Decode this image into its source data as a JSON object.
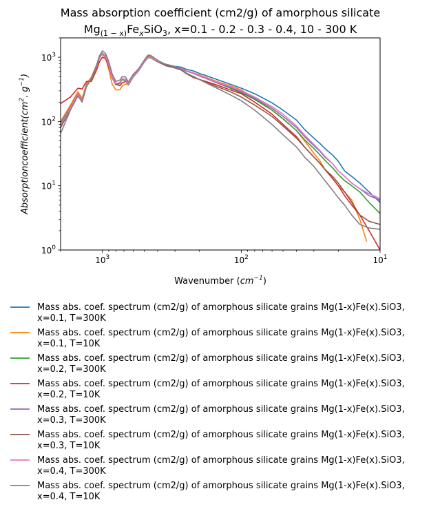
{
  "chart_data": {
    "type": "line",
    "title_line1": "Mass absorption coefficient (cm2/g) of amorphous silicate",
    "title_line2": {
      "prefix": "Mg",
      "sub1": "(1 − x)",
      "mid": "Fe",
      "sub2": "x",
      "mid2": "SiO",
      "sub3": "3",
      "suffix": ", x=0.1 - 0.2 - 0.3 - 0.4, 10 - 300 K"
    },
    "xlabel": {
      "text": "Wavenumber (",
      "unit_base": "cm",
      "unit_exp": "−1",
      "close": ")"
    },
    "ylabel": {
      "text": "Absorptioncoefficient(",
      "unit1": "cm",
      "exp1": "2",
      "dot": ". ",
      "unit2": "g",
      "exp2": "−1",
      "close": ")"
    },
    "x_scale": "log",
    "y_scale": "log",
    "x_inverted": true,
    "xlim": [
      2000,
      10
    ],
    "ylim": [
      1,
      2000
    ],
    "x_ticks": [
      {
        "value": 1000,
        "base": "10",
        "exp": "3"
      },
      {
        "value": 100,
        "base": "10",
        "exp": "2"
      },
      {
        "value": 10,
        "base": "10",
        "exp": "1"
      }
    ],
    "y_ticks": [
      {
        "value": 1,
        "base": "10",
        "exp": "0"
      },
      {
        "value": 10,
        "base": "10",
        "exp": "1"
      },
      {
        "value": 100,
        "base": "10",
        "exp": "2"
      },
      {
        "value": 1000,
        "base": "10",
        "exp": "3"
      }
    ],
    "grid": false,
    "legend_position": "below",
    "series": [
      {
        "name_line1": "Mass abs. coef. spectrum (cm2/g) of amorphous silicate grains Mg(1-x)Fe(x).SiO3,",
        "name_line2": "x=0.1, T=300K",
        "color": "#1f77b4",
        "x": [
          2000,
          1700,
          1500,
          1400,
          1300,
          1200,
          1100,
          1050,
          1000,
          950,
          900,
          850,
          800,
          750,
          720,
          680,
          650,
          600,
          550,
          500,
          470,
          450,
          400,
          350,
          300,
          270,
          250,
          220,
          200,
          180,
          150,
          120,
          100,
          80,
          60,
          50,
          40,
          35,
          30,
          27,
          25,
          22,
          20,
          18,
          16,
          14,
          12,
          10
        ],
        "y": [
          95,
          170,
          280,
          220,
          380,
          480,
          750,
          1000,
          1150,
          1050,
          780,
          500,
          380,
          400,
          460,
          440,
          380,
          500,
          620,
          850,
          1000,
          1000,
          880,
          780,
          720,
          700,
          650,
          610,
          560,
          520,
          450,
          380,
          330,
          270,
          195,
          150,
          105,
          75,
          55,
          45,
          38,
          30,
          24,
          17,
          14,
          11,
          8,
          5.5
        ]
      },
      {
        "name_line1": "Mass abs. coef. spectrum (cm2/g) of amorphous silicate grains Mg(1-x)Fe(x).SiO3,",
        "name_line2": "x=0.1, T=10K",
        "color": "#ff7f0e",
        "x": [
          2000,
          1700,
          1500,
          1400,
          1300,
          1200,
          1100,
          1050,
          1000,
          950,
          900,
          850,
          800,
          750,
          720,
          680,
          650,
          600,
          550,
          500,
          470,
          450,
          400,
          350,
          300,
          270,
          250,
          220,
          200,
          180,
          150,
          120,
          100,
          80,
          60,
          50,
          40,
          35,
          30,
          27,
          25,
          22,
          20,
          18,
          16,
          14,
          12.5
        ],
        "y": [
          100,
          180,
          290,
          230,
          390,
          490,
          770,
          1050,
          1100,
          980,
          650,
          380,
          310,
          310,
          360,
          380,
          390,
          520,
          650,
          880,
          1050,
          1030,
          880,
          760,
          700,
          670,
          620,
          570,
          530,
          490,
          420,
          360,
          310,
          230,
          150,
          110,
          72,
          50,
          32,
          24,
          18,
          13,
          10,
          8,
          6,
          3,
          1.35
        ]
      },
      {
        "name_line1": "Mass abs. coef. spectrum (cm2/g) of amorphous silicate grains Mg(1-x)Fe(x).SiO3,",
        "name_line2": "x=0.2, T=300K",
        "color": "#2ca02c",
        "x": [
          2000,
          1700,
          1500,
          1400,
          1300,
          1200,
          1100,
          1050,
          1000,
          950,
          900,
          850,
          800,
          750,
          720,
          680,
          650,
          600,
          550,
          500,
          470,
          450,
          400,
          350,
          300,
          270,
          250,
          220,
          200,
          180,
          150,
          120,
          100,
          80,
          60,
          50,
          40,
          35,
          30,
          27,
          25,
          22,
          20,
          18,
          16,
          14,
          12,
          10
        ],
        "y": [
          90,
          165,
          270,
          215,
          370,
          470,
          740,
          980,
          1120,
          1020,
          750,
          480,
          370,
          390,
          450,
          430,
          370,
          490,
          610,
          830,
          980,
          980,
          850,
          750,
          690,
          660,
          610,
          560,
          510,
          470,
          400,
          330,
          280,
          220,
          150,
          110,
          72,
          52,
          38,
          30,
          25,
          19,
          15,
          12,
          10,
          8,
          5.5,
          3.7
        ]
      },
      {
        "name_line1": "Mass abs. coef. spectrum (cm2/g) of amorphous silicate grains Mg(1-x)Fe(x).SiO3,",
        "name_line2": "x=0.2, T=10K",
        "color": "#d62728",
        "x": [
          2000,
          1700,
          1500,
          1400,
          1300,
          1200,
          1100,
          1050,
          1000,
          950,
          900,
          850,
          800,
          750,
          720,
          680,
          650,
          600,
          550,
          500,
          470,
          450,
          400,
          350,
          300,
          270,
          250,
          220,
          200,
          180,
          150,
          120,
          100,
          80,
          60,
          50,
          40,
          35,
          30,
          27,
          25,
          22,
          20,
          18,
          16,
          14,
          12,
          10
        ],
        "y": [
          190,
          240,
          330,
          320,
          420,
          420,
          640,
          850,
          1000,
          950,
          720,
          480,
          380,
          360,
          400,
          420,
          400,
          520,
          640,
          870,
          1020,
          1000,
          850,
          740,
          690,
          650,
          560,
          480,
          450,
          420,
          370,
          310,
          270,
          200,
          130,
          90,
          58,
          40,
          28,
          22,
          18,
          13,
          10,
          7,
          5,
          3.5,
          2,
          1.0
        ]
      },
      {
        "name_line1": "Mass abs. coef. spectrum (cm2/g) of amorphous silicate grains Mg(1-x)Fe(x).SiO3,",
        "name_line2": "x=0.3, T=300K",
        "color": "#9467bd",
        "x": [
          2000,
          1700,
          1500,
          1400,
          1300,
          1200,
          1100,
          1050,
          1000,
          950,
          900,
          850,
          800,
          750,
          720,
          680,
          650,
          600,
          550,
          500,
          470,
          450,
          400,
          350,
          300,
          270,
          250,
          220,
          200,
          180,
          150,
          120,
          100,
          80,
          60,
          50,
          40,
          35,
          30,
          27,
          25,
          22,
          20,
          18,
          16,
          14,
          12,
          10
        ],
        "y": [
          85,
          160,
          265,
          210,
          360,
          460,
          730,
          970,
          1130,
          1030,
          760,
          490,
          380,
          400,
          460,
          440,
          380,
          500,
          620,
          840,
          990,
          990,
          860,
          760,
          700,
          660,
          610,
          560,
          510,
          470,
          400,
          340,
          290,
          230,
          160,
          120,
          80,
          58,
          42,
          34,
          28,
          22,
          17,
          14,
          11,
          9,
          7,
          6
        ]
      },
      {
        "name_line1": "Mass abs. coef. spectrum (cm2/g) of amorphous silicate grains Mg(1-x)Fe(x).SiO3,",
        "name_line2": "x=0.3, T=10K",
        "color": "#8c564b",
        "x": [
          2000,
          1700,
          1500,
          1400,
          1300,
          1200,
          1100,
          1050,
          1000,
          950,
          900,
          850,
          800,
          750,
          720,
          680,
          650,
          600,
          550,
          500,
          470,
          450,
          400,
          350,
          300,
          270,
          250,
          220,
          200,
          180,
          150,
          120,
          100,
          80,
          60,
          50,
          40,
          35,
          30,
          27,
          25,
          22,
          20,
          18,
          16,
          14,
          12,
          10
        ],
        "y": [
          80,
          155,
          260,
          205,
          355,
          450,
          720,
          960,
          1150,
          1060,
          790,
          500,
          390,
          400,
          460,
          450,
          390,
          510,
          630,
          850,
          1000,
          1000,
          860,
          740,
          680,
          630,
          560,
          490,
          450,
          410,
          350,
          290,
          240,
          180,
          120,
          85,
          55,
          40,
          28,
          22,
          18,
          14,
          11,
          8,
          5.5,
          3.5,
          2.8,
          2.5
        ]
      },
      {
        "name_line1": "Mass abs. coef. spectrum (cm2/g) of amorphous silicate grains Mg(1-x)Fe(x).SiO3,",
        "name_line2": "x=0.4, T=300K",
        "color": "#e377c2",
        "x": [
          2000,
          1700,
          1500,
          1400,
          1300,
          1200,
          1100,
          1050,
          1000,
          950,
          900,
          850,
          800,
          750,
          720,
          680,
          650,
          600,
          550,
          500,
          470,
          450,
          400,
          350,
          300,
          270,
          250,
          220,
          200,
          180,
          150,
          120,
          100,
          80,
          60,
          50,
          40,
          35,
          30,
          27,
          25,
          22,
          20,
          18,
          16,
          14,
          12,
          10
        ],
        "y": [
          88,
          162,
          268,
          212,
          365,
          465,
          735,
          975,
          1140,
          1040,
          770,
          495,
          385,
          405,
          465,
          445,
          385,
          505,
          625,
          850,
          1000,
          1000,
          870,
          770,
          710,
          670,
          620,
          570,
          520,
          480,
          410,
          350,
          300,
          240,
          170,
          130,
          85,
          62,
          44,
          35,
          29,
          22,
          17,
          14,
          11,
          9,
          7.5,
          6.3
        ]
      },
      {
        "name_line1": "Mass abs. coef. spectrum (cm2/g) of amorphous silicate grains Mg(1-x)Fe(x).SiO3,",
        "name_line2": "x=0.4, T=10K",
        "color": "#7f7f7f",
        "x": [
          2000,
          1700,
          1500,
          1400,
          1300,
          1200,
          1100,
          1050,
          1000,
          950,
          900,
          850,
          800,
          750,
          720,
          680,
          650,
          600,
          550,
          500,
          470,
          450,
          400,
          350,
          300,
          270,
          250,
          220,
          200,
          180,
          150,
          120,
          100,
          80,
          60,
          50,
          40,
          35,
          30,
          27,
          25,
          22,
          20,
          18,
          16,
          14,
          12,
          10
        ],
        "y": [
          65,
          150,
          250,
          200,
          350,
          460,
          760,
          1050,
          1250,
          1150,
          860,
          550,
          420,
          440,
          500,
          490,
          410,
          540,
          660,
          900,
          1080,
          1070,
          900,
          770,
          700,
          650,
          570,
          500,
          450,
          400,
          330,
          260,
          210,
          150,
          90,
          62,
          40,
          28,
          20,
          15,
          12,
          8.5,
          6.5,
          5,
          3.5,
          2.5,
          2.2,
          2.1
        ]
      }
    ]
  }
}
